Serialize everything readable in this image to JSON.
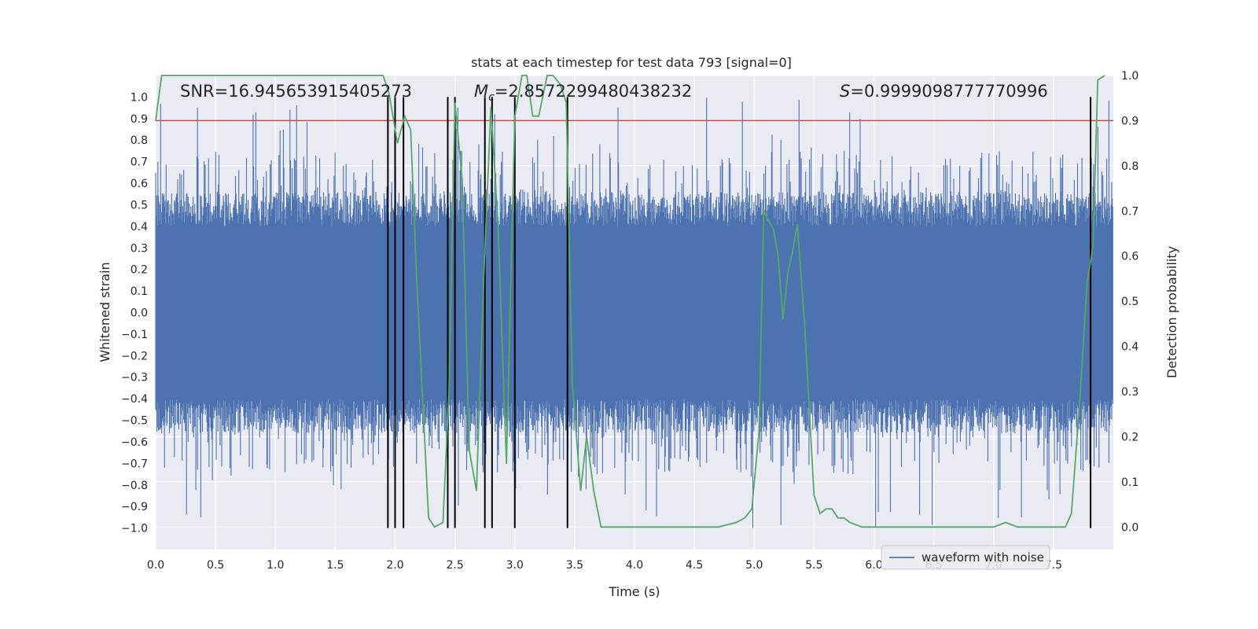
{
  "chart_data": {
    "type": "line",
    "title": "stats at each timestep for test data 793 [signal=0]",
    "xlabel": "Time (s)",
    "ylabel": "Whitened strain",
    "y2label": "Detection probability",
    "xlim": [
      0.0,
      8.0
    ],
    "ylim": [
      -1.1,
      1.1
    ],
    "y2lim": [
      -0.05,
      1.0
    ],
    "xticks": [
      "0.0",
      "0.5",
      "1.0",
      "1.5",
      "2.0",
      "2.5",
      "3.0",
      "3.5",
      "4.0",
      "4.5",
      "5.0",
      "5.5",
      "6.0",
      "6.5",
      "7.0",
      "7.5"
    ],
    "yticks": [
      "1.0",
      "0.9",
      "0.8",
      "0.7",
      "0.6",
      "0.5",
      "0.4",
      "0.3",
      "0.2",
      "0.1",
      "0.0",
      "−0.1",
      "−0.2",
      "−0.3",
      "−0.4",
      "−0.5",
      "−0.6",
      "−0.7",
      "−0.8",
      "−0.9",
      "−1.0"
    ],
    "y2ticks": [
      "1.0",
      "0.9",
      "0.8",
      "0.7",
      "0.6",
      "0.5",
      "0.4",
      "0.3",
      "0.2",
      "0.1",
      "0.0"
    ],
    "grid": true,
    "legend": {
      "placement": "lower-right",
      "entries": [
        "waveform with noise"
      ]
    },
    "annotations": {
      "snr": "SNR=16.945653915405273",
      "mc_symbol": "M",
      "mc_sub": "c",
      "mc_value": "=2.8572299480438232",
      "s_symbol": "S",
      "s_value": "=0.9999098777770996"
    },
    "threshold": {
      "value": 0.9,
      "axis": "y2",
      "color": "#c44e52"
    },
    "vlines": [
      1.94,
      2.0,
      2.07,
      2.44,
      2.5,
      2.75,
      2.81,
      3.0,
      3.44,
      7.81
    ],
    "vline_range": [
      -1.0,
      1.0
    ],
    "waveform": {
      "name": "waveform with noise",
      "color": "#4c72b0",
      "core_amplitude": 0.4,
      "max_amplitude": 1.0
    },
    "probability": {
      "color": "#55a868",
      "x": [
        0.0,
        0.05,
        0.1,
        0.2,
        0.5,
        1.0,
        1.5,
        1.9,
        1.95,
        2.02,
        2.08,
        2.13,
        2.18,
        2.28,
        2.33,
        2.4,
        2.45,
        2.5,
        2.56,
        2.62,
        2.68,
        2.74,
        2.8,
        2.86,
        2.93,
        3.0,
        3.06,
        3.1,
        3.15,
        3.2,
        3.27,
        3.32,
        3.38,
        3.43,
        3.48,
        3.55,
        3.6,
        3.66,
        3.72,
        3.78,
        3.85,
        4.0,
        4.5,
        4.7,
        4.85,
        4.92,
        4.98,
        5.04,
        5.08,
        5.12,
        5.16,
        5.2,
        5.24,
        5.28,
        5.32,
        5.36,
        5.42,
        5.5,
        5.55,
        5.6,
        5.65,
        5.7,
        5.75,
        5.8,
        5.9,
        6.0,
        6.1,
        6.2,
        6.3,
        6.4,
        6.6,
        6.8,
        7.0,
        7.1,
        7.2,
        7.5,
        7.6,
        7.65,
        7.72,
        7.78,
        7.83,
        7.87,
        7.93
      ],
      "y": [
        0.9,
        1.0,
        1.0,
        1.0,
        1.0,
        1.0,
        1.0,
        1.0,
        0.96,
        0.85,
        0.91,
        0.88,
        0.55,
        0.02,
        0.0,
        0.01,
        0.3,
        0.94,
        0.77,
        0.17,
        0.08,
        0.55,
        0.93,
        0.67,
        0.14,
        0.91,
        1.0,
        1.0,
        0.91,
        0.91,
        1.0,
        1.0,
        0.98,
        0.94,
        0.32,
        0.08,
        0.2,
        0.08,
        0.0,
        0.0,
        0.0,
        0.0,
        0.0,
        0.0,
        0.01,
        0.02,
        0.04,
        0.21,
        0.7,
        0.68,
        0.66,
        0.6,
        0.46,
        0.56,
        0.61,
        0.67,
        0.45,
        0.07,
        0.03,
        0.04,
        0.04,
        0.02,
        0.02,
        0.01,
        0.0,
        0.0,
        0.0,
        0.0,
        0.0,
        0.0,
        0.0,
        0.0,
        0.0,
        0.01,
        0.0,
        0.0,
        0.0,
        0.03,
        0.28,
        0.54,
        0.62,
        0.99,
        1.0
      ]
    }
  }
}
